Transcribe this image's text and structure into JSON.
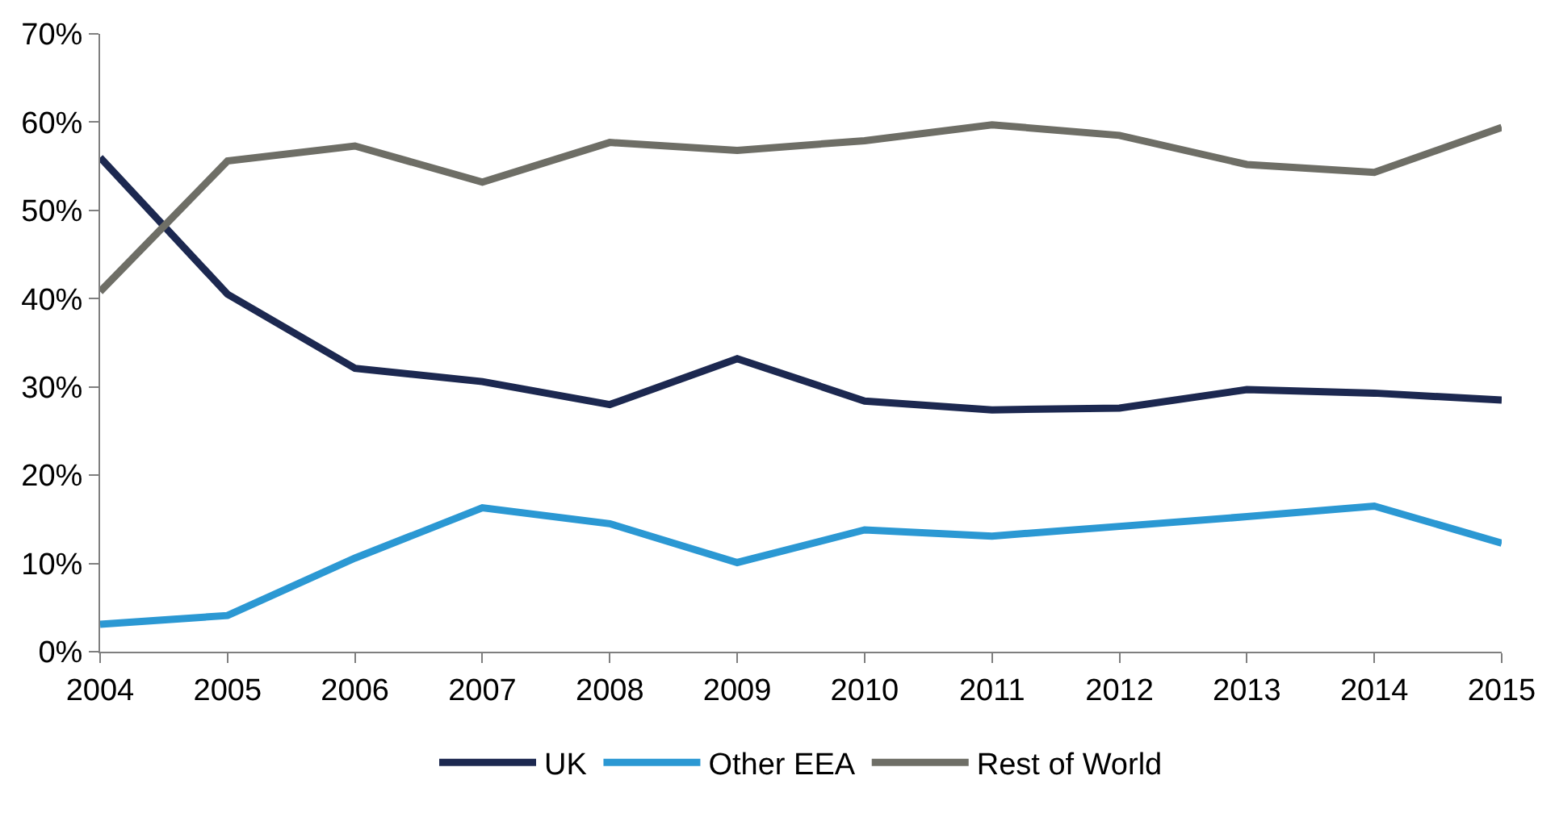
{
  "chart_data": {
    "type": "line",
    "x": [
      2004,
      2005,
      2006,
      2007,
      2008,
      2009,
      2010,
      2011,
      2012,
      2013,
      2014,
      2015
    ],
    "series": [
      {
        "name": "UK",
        "color": "#1c2850",
        "values": [
          56.0,
          40.5,
          32.1,
          30.6,
          28.0,
          33.2,
          28.4,
          27.4,
          27.6,
          29.7,
          29.3,
          28.5
        ]
      },
      {
        "name": "Other EEA",
        "color": "#2b98d3",
        "values": [
          3.1,
          4.1,
          10.6,
          16.3,
          14.5,
          10.1,
          13.8,
          13.1,
          14.2,
          15.3,
          16.5,
          12.3
        ]
      },
      {
        "name": "Rest of World",
        "color": "#6e6e66",
        "values": [
          40.8,
          55.6,
          57.3,
          53.2,
          57.7,
          56.8,
          57.9,
          59.7,
          58.5,
          55.2,
          54.3,
          59.4
        ]
      }
    ],
    "xlim": [
      2004,
      2015
    ],
    "xticks": [
      2004,
      2005,
      2006,
      2007,
      2008,
      2009,
      2010,
      2011,
      2012,
      2013,
      2014,
      2015
    ],
    "ylim": [
      0,
      70
    ],
    "yticks": [
      {
        "value": 0,
        "label": "0%"
      },
      {
        "value": 10,
        "label": "10%"
      },
      {
        "value": 20,
        "label": "20%"
      },
      {
        "value": 30,
        "label": "30%"
      },
      {
        "value": 40,
        "label": "40%"
      },
      {
        "value": 50,
        "label": "50%"
      },
      {
        "value": 60,
        "label": "60%"
      },
      {
        "value": 70,
        "label": "70%"
      }
    ],
    "legend": "bottom",
    "marker": "none",
    "line_style": "solid"
  }
}
